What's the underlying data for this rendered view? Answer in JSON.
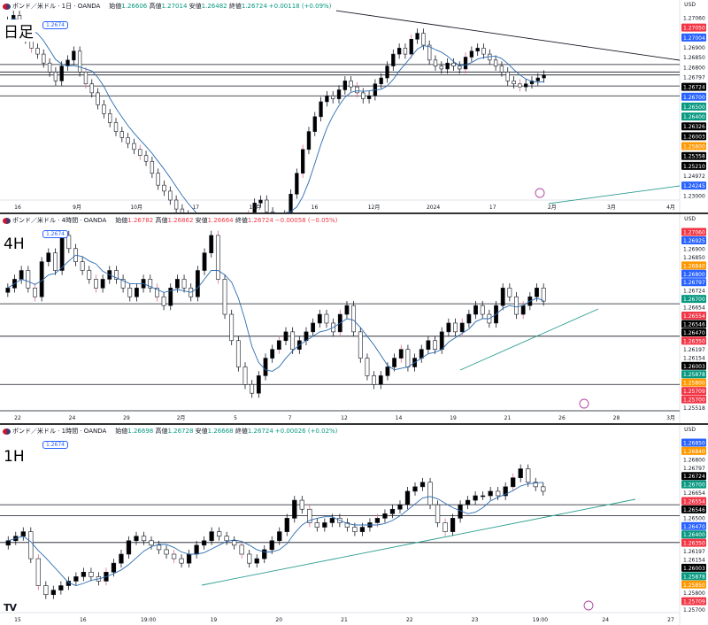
{
  "panels": [
    {
      "id": "daily",
      "symbol": "ポンド／米ドル · 1日 · OANDA",
      "tf_label": "日足",
      "open_label": "始値",
      "open": "1.26606",
      "high_label": "高値",
      "high": "1.27014",
      "low_label": "安値",
      "low": "1.26482",
      "close_label": "終値",
      "close": "1.26724",
      "change": "+0.00118 (+0.09%)",
      "chip": "1.2674",
      "currency": "USD",
      "price_labels": [
        {
          "v": 1.2706,
          "c": "#ffffff",
          "t": "#131722"
        },
        {
          "v": 1.2705,
          "c": "#F23645",
          "t": "#ffffff"
        },
        {
          "v": 1.27004,
          "c": "#2962ff",
          "t": "#ffffff"
        },
        {
          "v": 1.269,
          "c": "#ffffff",
          "t": "#131722"
        },
        {
          "v": 1.2685,
          "c": "#ffffff",
          "t": "#131722"
        },
        {
          "v": 1.268,
          "c": "#ffffff",
          "t": "#131722"
        },
        {
          "v": 1.26797,
          "c": "#ffffff",
          "t": "#131722"
        },
        {
          "v": 1.26724,
          "c": "#000000",
          "t": "#ffffff"
        },
        {
          "v": 1.267,
          "c": "#2962ff",
          "t": "#ffffff"
        },
        {
          "v": 1.265,
          "c": "#089981",
          "t": "#ffffff"
        },
        {
          "v": 1.264,
          "c": "#089981",
          "t": "#ffffff"
        },
        {
          "v": 1.26326,
          "c": "#000000",
          "t": "#ffffff"
        },
        {
          "v": 1.26003,
          "c": "#000000",
          "t": "#ffffff"
        },
        {
          "v": 1.258,
          "c": "#FF9800",
          "t": "#ffffff"
        },
        {
          "v": 1.25358,
          "c": "#000000",
          "t": "#ffffff"
        },
        {
          "v": 1.2521,
          "c": "#000000",
          "t": "#ffffff"
        },
        {
          "v": 1.24972,
          "c": "#ffffff",
          "t": "#131722"
        },
        {
          "v": 1.24245,
          "c": "#2962ff",
          "t": "#ffffff"
        },
        {
          "v": 1.23,
          "c": "#ffffff",
          "t": "#131722"
        }
      ],
      "x_labels": [
        "16",
        "9月",
        "10月",
        "17",
        "11月",
        "16",
        "12月",
        "2024",
        "17",
        "2月",
        "3月",
        "4月"
      ],
      "candles": [
        1.285,
        1.287,
        1.284,
        1.279,
        1.276,
        1.274,
        1.271,
        1.268,
        1.265,
        1.27,
        1.272,
        1.275,
        1.268,
        1.264,
        1.261,
        1.257,
        1.254,
        1.251,
        1.248,
        1.246,
        1.244,
        1.242,
        1.24,
        1.238,
        1.234,
        1.23,
        1.228,
        1.225,
        1.222,
        1.22,
        1.218,
        1.216,
        1.214,
        1.215,
        1.217,
        1.218,
        1.216,
        1.214,
        1.213,
        1.216,
        1.22,
        1.224,
        1.225,
        1.221,
        1.218,
        1.216,
        1.22,
        1.227,
        1.234,
        1.242,
        1.248,
        1.253,
        1.258,
        1.26,
        1.259,
        1.262,
        1.265,
        1.263,
        1.261,
        1.259,
        1.26,
        1.264,
        1.266,
        1.27,
        1.274,
        1.276,
        1.274,
        1.279,
        1.281,
        1.277,
        1.272,
        1.27,
        1.269,
        1.271,
        1.27,
        1.269,
        1.273,
        1.275,
        1.276,
        1.274,
        1.272,
        1.27,
        1.268,
        1.265,
        1.264,
        1.263,
        1.264,
        1.265,
        1.266,
        1.267
      ],
      "levels": [
        1.2705,
        1.268,
        1.267,
        1.2633,
        1.26
      ],
      "ylim": [
        1.225,
        1.288
      ]
    },
    {
      "id": "h4",
      "symbol": "ポンド／米ドル · 4時間 · OANDA",
      "tf_label": "4H",
      "open_label": "始値",
      "open": "1.26782",
      "high_label": "高値",
      "high": "1.26862",
      "low_label": "安値",
      "low": "1.26664",
      "close_label": "終値",
      "close": "1.26724",
      "change": "−0.00058 (−0.05%)",
      "chip": "1.2674",
      "currency": "USD",
      "price_labels": [
        {
          "v": 1.2706,
          "c": "#F23645",
          "t": "#ffffff"
        },
        {
          "v": 1.26925,
          "c": "#2962ff",
          "t": "#ffffff"
        },
        {
          "v": 1.269,
          "c": "#ffffff",
          "t": "#131722"
        },
        {
          "v": 1.2685,
          "c": "#ffffff",
          "t": "#131722"
        },
        {
          "v": 1.2684,
          "c": "#FF9800",
          "t": "#ffffff"
        },
        {
          "v": 1.268,
          "c": "#2962ff",
          "t": "#ffffff"
        },
        {
          "v": 1.26797,
          "c": "#2962ff",
          "t": "#ffffff"
        },
        {
          "v": 1.26724,
          "c": "#ffffff",
          "t": "#131722"
        },
        {
          "v": 1.267,
          "c": "#089981",
          "t": "#ffffff"
        },
        {
          "v": 1.26654,
          "c": "#ffffff",
          "t": "#131722"
        },
        {
          "v": 1.26554,
          "c": "#F23645",
          "t": "#ffffff"
        },
        {
          "v": 1.26546,
          "c": "#000000",
          "t": "#ffffff"
        },
        {
          "v": 1.2647,
          "c": "#000000",
          "t": "#ffffff"
        },
        {
          "v": 1.2635,
          "c": "#F23645",
          "t": "#ffffff"
        },
        {
          "v": 1.26197,
          "c": "#ffffff",
          "t": "#131722"
        },
        {
          "v": 1.26154,
          "c": "#ffffff",
          "t": "#131722"
        },
        {
          "v": 1.26003,
          "c": "#000000",
          "t": "#ffffff"
        },
        {
          "v": 1.25878,
          "c": "#089981",
          "t": "#ffffff"
        },
        {
          "v": 1.258,
          "c": "#FF9800",
          "t": "#ffffff"
        },
        {
          "v": 1.25709,
          "c": "#F23645",
          "t": "#ffffff"
        },
        {
          "v": 1.257,
          "c": "#F23645",
          "t": "#ffffff"
        },
        {
          "v": 1.25518,
          "c": "#ffffff",
          "t": "#131722"
        }
      ],
      "x_labels": [
        "22",
        "24",
        "29",
        "2月",
        "5",
        "7",
        "12",
        "14",
        "19",
        "21",
        "26",
        "28",
        "3月"
      ],
      "candles": [
        1.269,
        1.27,
        1.271,
        1.269,
        1.268,
        1.272,
        1.273,
        1.271,
        1.275,
        1.2735,
        1.272,
        1.271,
        1.27,
        1.269,
        1.27,
        1.271,
        1.27,
        1.269,
        1.268,
        1.269,
        1.27,
        1.269,
        1.268,
        1.267,
        1.269,
        1.27,
        1.269,
        1.268,
        1.271,
        1.273,
        1.275,
        1.27,
        1.266,
        1.263,
        1.26,
        1.258,
        1.257,
        1.259,
        1.261,
        1.262,
        1.263,
        1.264,
        1.262,
        1.263,
        1.264,
        1.265,
        1.266,
        1.265,
        1.264,
        1.266,
        1.267,
        1.264,
        1.261,
        1.259,
        1.258,
        1.259,
        1.26,
        1.261,
        1.262,
        1.26,
        1.261,
        1.262,
        1.263,
        1.262,
        1.264,
        1.265,
        1.264,
        1.265,
        1.266,
        1.267,
        1.266,
        1.265,
        1.267,
        1.269,
        1.268,
        1.266,
        1.267,
        1.268,
        1.269,
        1.2675
      ],
      "levels": [
        1.2672,
        1.2635,
        1.258,
        1.255
      ],
      "ylim": [
        1.255,
        1.276
      ]
    },
    {
      "id": "h1",
      "symbol": "ポンド／米ドル · 1時間 · OANDA",
      "tf_label": "1H",
      "open_label": "始値",
      "open": "1.26698",
      "high_label": "高値",
      "high": "1.26728",
      "low_label": "安値",
      "low": "1.26668",
      "close_label": "終値",
      "close": "1.26724",
      "change": "+0.00026 (+0.02%)",
      "chip": "1.2674",
      "currency": "USD",
      "price_labels": [
        {
          "v": 1.2685,
          "c": "#2962ff",
          "t": "#ffffff"
        },
        {
          "v": 1.2684,
          "c": "#FF9800",
          "t": "#ffffff"
        },
        {
          "v": 1.268,
          "c": "#ffffff",
          "t": "#131722"
        },
        {
          "v": 1.26797,
          "c": "#ffffff",
          "t": "#131722"
        },
        {
          "v": 1.26724,
          "c": "#000000",
          "t": "#ffffff"
        },
        {
          "v": 1.267,
          "c": "#089981",
          "t": "#ffffff"
        },
        {
          "v": 1.26654,
          "c": "#ffffff",
          "t": "#131722"
        },
        {
          "v": 1.26554,
          "c": "#F23645",
          "t": "#ffffff"
        },
        {
          "v": 1.26546,
          "c": "#000000",
          "t": "#ffffff"
        },
        {
          "v": 1.265,
          "c": "#ffffff",
          "t": "#131722"
        },
        {
          "v": 1.2647,
          "c": "#2962ff",
          "t": "#ffffff"
        },
        {
          "v": 1.264,
          "c": "#089981",
          "t": "#ffffff"
        },
        {
          "v": 1.2635,
          "c": "#F23645",
          "t": "#ffffff"
        },
        {
          "v": 1.26197,
          "c": "#ffffff",
          "t": "#131722"
        },
        {
          "v": 1.26154,
          "c": "#ffffff",
          "t": "#131722"
        },
        {
          "v": 1.26003,
          "c": "#000000",
          "t": "#ffffff"
        },
        {
          "v": 1.25878,
          "c": "#089981",
          "t": "#ffffff"
        },
        {
          "v": 1.2585,
          "c": "#FF9800",
          "t": "#ffffff"
        },
        {
          "v": 1.258,
          "c": "#ffffff",
          "t": "#131722"
        },
        {
          "v": 1.25709,
          "c": "#F23645",
          "t": "#ffffff"
        },
        {
          "v": 1.257,
          "c": "#ffffff",
          "t": "#131722"
        }
      ],
      "x_labels": [
        "15",
        "16",
        "19:00",
        "19",
        "20",
        "21",
        "22",
        "23",
        "19:00",
        "24",
        "27"
      ],
      "candles": [
        1.264,
        1.2645,
        1.265,
        1.262,
        1.259,
        1.258,
        1.2585,
        1.259,
        1.2595,
        1.26,
        1.2605,
        1.26,
        1.2595,
        1.2605,
        1.2615,
        1.2625,
        1.264,
        1.2645,
        1.264,
        1.2635,
        1.263,
        1.2625,
        1.262,
        1.2615,
        1.2625,
        1.2635,
        1.264,
        1.265,
        1.2645,
        1.264,
        1.2635,
        1.2625,
        1.2615,
        1.262,
        1.263,
        1.264,
        1.265,
        1.2665,
        1.2685,
        1.2675,
        1.266,
        1.2655,
        1.266,
        1.2665,
        1.266,
        1.2655,
        1.265,
        1.2655,
        1.266,
        1.2665,
        1.267,
        1.2675,
        1.268,
        1.2695,
        1.27,
        1.2705,
        1.268,
        1.266,
        1.265,
        1.2665,
        1.268,
        1.2685,
        1.269,
        1.269,
        1.2695,
        1.269,
        1.27,
        1.271,
        1.272,
        1.2705,
        1.27,
        1.2695
      ],
      "levels": [
        1.268,
        1.2668,
        1.2638
      ],
      "ylim": [
        1.256,
        1.2755
      ]
    }
  ]
}
